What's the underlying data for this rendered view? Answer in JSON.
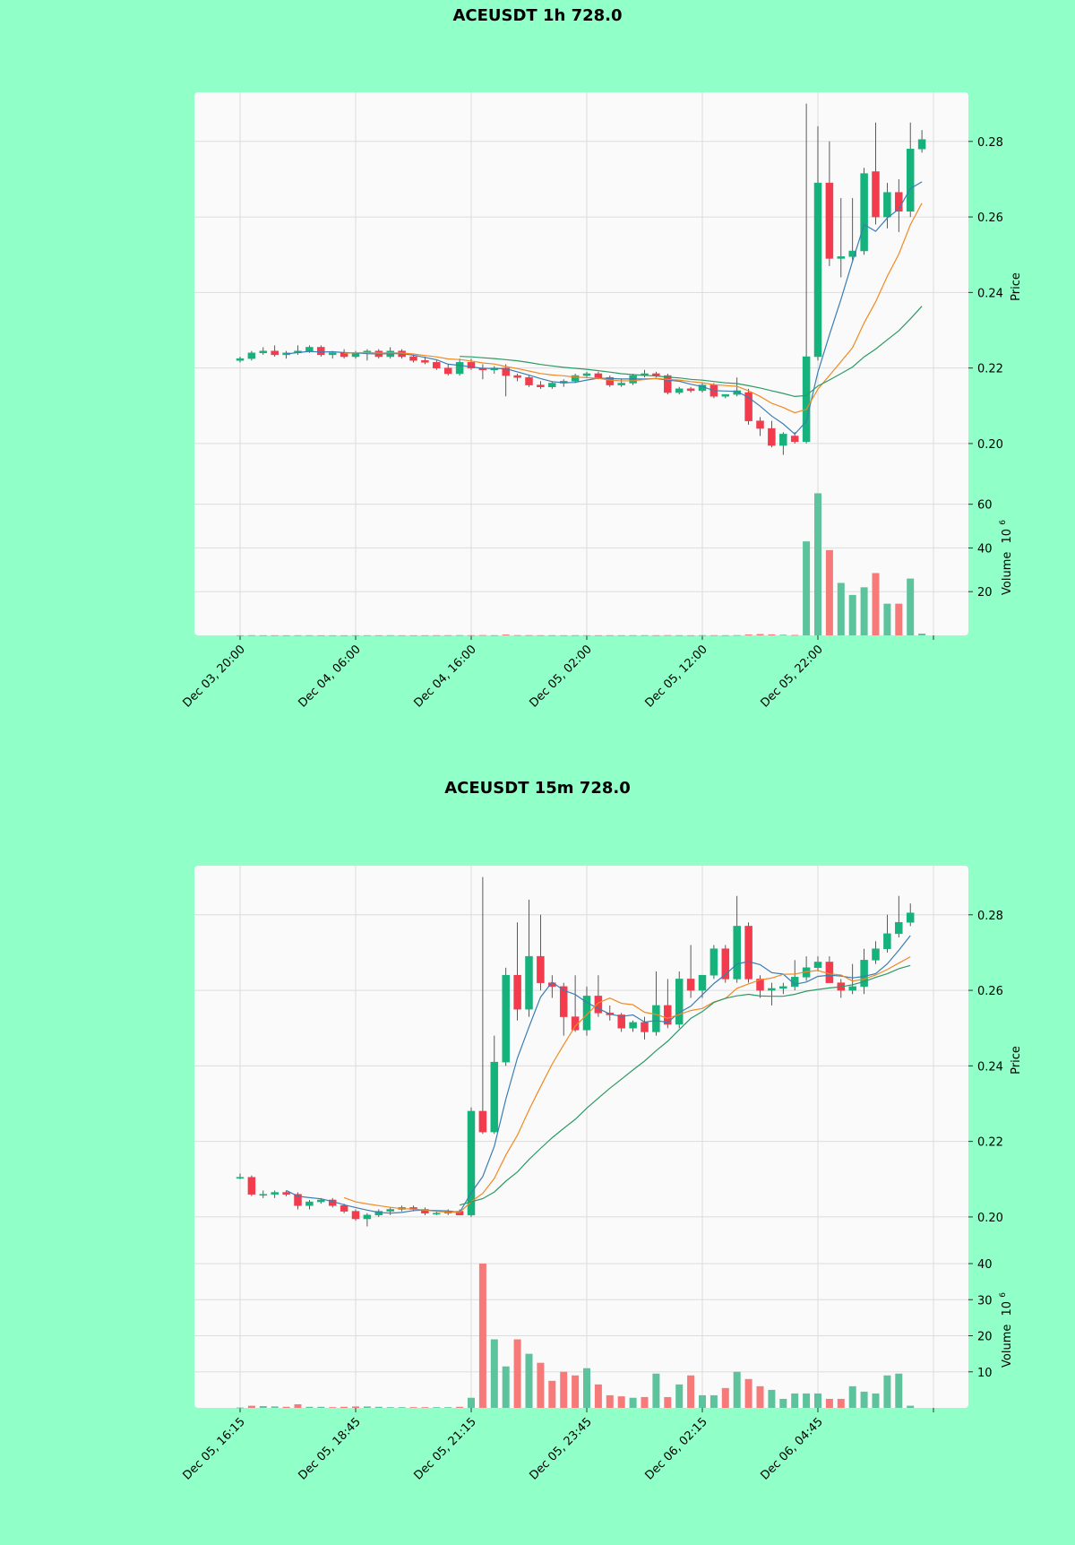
{
  "colors": {
    "background": "#90ffc8",
    "panel": "#fafafa",
    "grid": "#dcdcdc",
    "up": "#16b27c",
    "down": "#f23b4d",
    "vol_up": "#5cc39c",
    "vol_down": "#f77a7a",
    "ma_fast": "#3a7db3",
    "ma_mid": "#f08a24",
    "ma_slow": "#2c9a63"
  },
  "chart_data": [
    {
      "type": "candlestick",
      "title": "ACEUSDT 1h 728.0",
      "ylabel": "Price",
      "volume_label": "Volume",
      "volume_unit": "10",
      "volume_unit_exp": "6",
      "ylim": [
        0.195,
        0.293
      ],
      "yticks": [
        0.2,
        0.22,
        0.24,
        0.26,
        0.28
      ],
      "ytick_labels": [
        "0.20",
        "0.22",
        "0.24",
        "0.26",
        "0.28"
      ],
      "volume_ylim": [
        0,
        66
      ],
      "volume_ticks": [
        20,
        40,
        60
      ],
      "volume_tick_labels": [
        "20",
        "40",
        "60"
      ],
      "xtick_indices": [
        0,
        10,
        20,
        30,
        40,
        50
      ],
      "xtick_labels": [
        "Dec 03, 20:00",
        "Dec 04, 06:00",
        "Dec 04, 16:00",
        "Dec 05, 02:00",
        "Dec 05, 12:00",
        "Dec 05, 22:00"
      ],
      "candles": [
        [
          0.222,
          0.223,
          0.2215,
          0.2225,
          0.05
        ],
        [
          0.2225,
          0.2245,
          0.222,
          0.224,
          0.08
        ],
        [
          0.224,
          0.2255,
          0.2235,
          0.2245,
          0.06
        ],
        [
          0.2245,
          0.226,
          0.223,
          0.2235,
          0.07
        ],
        [
          0.2235,
          0.2245,
          0.2225,
          0.224,
          0.05
        ],
        [
          0.224,
          0.226,
          0.2235,
          0.2245,
          0.06
        ],
        [
          0.2245,
          0.226,
          0.224,
          0.2255,
          0.07
        ],
        [
          0.2255,
          0.226,
          0.223,
          0.2235,
          0.06
        ],
        [
          0.2235,
          0.2245,
          0.2225,
          0.224,
          0.05
        ],
        [
          0.224,
          0.225,
          0.2225,
          0.223,
          0.05
        ],
        [
          0.223,
          0.2245,
          0.2225,
          0.224,
          0.06
        ],
        [
          0.224,
          0.225,
          0.222,
          0.2245,
          0.07
        ],
        [
          0.2245,
          0.225,
          0.2225,
          0.223,
          0.06
        ],
        [
          0.223,
          0.2255,
          0.2225,
          0.2245,
          0.08
        ],
        [
          0.2245,
          0.225,
          0.2225,
          0.223,
          0.06
        ],
        [
          0.223,
          0.2235,
          0.2215,
          0.222,
          0.06
        ],
        [
          0.222,
          0.223,
          0.221,
          0.2215,
          0.07
        ],
        [
          0.2215,
          0.222,
          0.2195,
          0.22,
          0.09
        ],
        [
          0.22,
          0.221,
          0.218,
          0.2185,
          0.1
        ],
        [
          0.2185,
          0.2225,
          0.218,
          0.2215,
          0.12
        ],
        [
          0.2215,
          0.2225,
          0.2195,
          0.22,
          0.1
        ],
        [
          0.22,
          0.221,
          0.217,
          0.2195,
          0.15
        ],
        [
          0.2195,
          0.2205,
          0.2185,
          0.22,
          0.08
        ],
        [
          0.22,
          0.221,
          0.2125,
          0.218,
          0.4
        ],
        [
          0.218,
          0.2185,
          0.2165,
          0.2175,
          0.12
        ],
        [
          0.2175,
          0.218,
          0.215,
          0.2155,
          0.1
        ],
        [
          0.2155,
          0.2165,
          0.2145,
          0.215,
          0.09
        ],
        [
          0.215,
          0.2165,
          0.2145,
          0.216,
          0.08
        ],
        [
          0.216,
          0.217,
          0.215,
          0.2165,
          0.07
        ],
        [
          0.2165,
          0.2185,
          0.216,
          0.218,
          0.09
        ],
        [
          0.218,
          0.219,
          0.2175,
          0.2185,
          0.08
        ],
        [
          0.2185,
          0.219,
          0.217,
          0.2175,
          0.07
        ],
        [
          0.2175,
          0.218,
          0.215,
          0.2155,
          0.08
        ],
        [
          0.2155,
          0.217,
          0.215,
          0.216,
          0.07
        ],
        [
          0.216,
          0.2185,
          0.2155,
          0.218,
          0.09
        ],
        [
          0.218,
          0.2195,
          0.2175,
          0.2185,
          0.1
        ],
        [
          0.2185,
          0.219,
          0.2175,
          0.218,
          0.08
        ],
        [
          0.218,
          0.2185,
          0.213,
          0.2135,
          0.12
        ],
        [
          0.2135,
          0.215,
          0.213,
          0.2145,
          0.08
        ],
        [
          0.2145,
          0.215,
          0.2135,
          0.214,
          0.07
        ],
        [
          0.214,
          0.216,
          0.2135,
          0.2155,
          0.09
        ],
        [
          0.2155,
          0.216,
          0.212,
          0.2125,
          0.1
        ],
        [
          0.2125,
          0.213,
          0.212,
          0.213,
          0.08
        ],
        [
          0.213,
          0.2175,
          0.2125,
          0.214,
          0.12
        ],
        [
          0.2135,
          0.2145,
          0.205,
          0.206,
          0.4
        ],
        [
          0.206,
          0.207,
          0.202,
          0.204,
          0.6
        ],
        [
          0.204,
          0.206,
          0.199,
          0.1995,
          0.45
        ],
        [
          0.1995,
          0.203,
          0.197,
          0.2025,
          0.3
        ],
        [
          0.202,
          0.203,
          0.2,
          0.2005,
          0.2
        ],
        [
          0.2005,
          0.29,
          0.2,
          0.223,
          43.0
        ],
        [
          0.223,
          0.284,
          0.222,
          0.269,
          65.0
        ],
        [
          0.269,
          0.28,
          0.247,
          0.249,
          39.0
        ],
        [
          0.249,
          0.265,
          0.244,
          0.2495,
          24.0
        ],
        [
          0.2495,
          0.265,
          0.248,
          0.251,
          18.5
        ],
        [
          0.251,
          0.273,
          0.25,
          0.2715,
          22.0
        ],
        [
          0.272,
          0.285,
          0.258,
          0.26,
          28.5
        ],
        [
          0.26,
          0.269,
          0.257,
          0.2665,
          14.5
        ],
        [
          0.2665,
          0.27,
          0.256,
          0.2615,
          14.5
        ],
        [
          0.2615,
          0.285,
          0.26,
          0.278,
          26.0
        ],
        [
          0.278,
          0.283,
          0.277,
          0.2805,
          0.8
        ]
      ],
      "ma_windows": [
        5,
        10,
        20
      ]
    },
    {
      "type": "candlestick",
      "title": "ACEUSDT 15m 728.0",
      "ylabel": "Price",
      "volume_label": "Volume",
      "volume_unit": "10",
      "volume_unit_exp": "6",
      "ylim": [
        0.195,
        0.293
      ],
      "yticks": [
        0.2,
        0.22,
        0.24,
        0.26,
        0.28
      ],
      "ytick_labels": [
        "0.20",
        "0.22",
        "0.24",
        "0.26",
        "0.28"
      ],
      "volume_ylim": [
        0,
        40
      ],
      "volume_ticks": [
        10,
        20,
        30,
        40
      ],
      "volume_tick_labels": [
        "10",
        "20",
        "30",
        "40"
      ],
      "xtick_indices": [
        0,
        10,
        20,
        30,
        40,
        50
      ],
      "xtick_labels": [
        "Dec 05, 16:15",
        "Dec 05, 18:45",
        "Dec 05, 21:15",
        "Dec 05, 23:45",
        "Dec 06, 02:15",
        "Dec 06, 04:45"
      ],
      "candles": [
        [
          0.2105,
          0.2115,
          0.21,
          0.2105,
          0.1
        ],
        [
          0.2105,
          0.211,
          0.2055,
          0.206,
          0.6
        ],
        [
          0.206,
          0.207,
          0.205,
          0.206,
          0.5
        ],
        [
          0.206,
          0.207,
          0.205,
          0.2065,
          0.4
        ],
        [
          0.2065,
          0.207,
          0.2055,
          0.206,
          0.3
        ],
        [
          0.206,
          0.2065,
          0.202,
          0.203,
          1.0
        ],
        [
          0.203,
          0.2045,
          0.202,
          0.204,
          0.3
        ],
        [
          0.204,
          0.205,
          0.2035,
          0.2045,
          0.3
        ],
        [
          0.2045,
          0.205,
          0.2025,
          0.203,
          0.2
        ],
        [
          0.203,
          0.2035,
          0.201,
          0.2015,
          0.3
        ],
        [
          0.2015,
          0.202,
          0.199,
          0.1995,
          0.4
        ],
        [
          0.1995,
          0.201,
          0.1975,
          0.2005,
          0.4
        ],
        [
          0.2005,
          0.202,
          0.2,
          0.2015,
          0.3
        ],
        [
          0.2015,
          0.2025,
          0.2005,
          0.202,
          0.2
        ],
        [
          0.202,
          0.203,
          0.2015,
          0.2025,
          0.2
        ],
        [
          0.2025,
          0.203,
          0.2015,
          0.202,
          0.2
        ],
        [
          0.202,
          0.2025,
          0.2005,
          0.201,
          0.2
        ],
        [
          0.201,
          0.2015,
          0.2005,
          0.201,
          0.2
        ],
        [
          0.201,
          0.202,
          0.2005,
          0.2015,
          0.2
        ],
        [
          0.2015,
          0.202,
          0.2005,
          0.2005,
          0.3
        ],
        [
          0.2005,
          0.229,
          0.2,
          0.228,
          2.8
        ],
        [
          0.228,
          0.29,
          0.222,
          0.2225,
          40.0
        ],
        [
          0.2225,
          0.248,
          0.222,
          0.241,
          19.0
        ],
        [
          0.241,
          0.266,
          0.24,
          0.264,
          11.5
        ],
        [
          0.264,
          0.278,
          0.252,
          0.255,
          19.0
        ],
        [
          0.255,
          0.284,
          0.253,
          0.269,
          15.0
        ],
        [
          0.269,
          0.28,
          0.26,
          0.262,
          12.5
        ],
        [
          0.262,
          0.264,
          0.258,
          0.261,
          7.5
        ],
        [
          0.261,
          0.262,
          0.248,
          0.253,
          10.0
        ],
        [
          0.253,
          0.264,
          0.249,
          0.2495,
          9.0
        ],
        [
          0.2495,
          0.261,
          0.248,
          0.2585,
          11.0
        ],
        [
          0.2585,
          0.264,
          0.253,
          0.254,
          6.5
        ],
        [
          0.254,
          0.256,
          0.252,
          0.2535,
          3.5
        ],
        [
          0.2535,
          0.254,
          0.249,
          0.25,
          3.2
        ],
        [
          0.25,
          0.252,
          0.249,
          0.2515,
          2.8
        ],
        [
          0.2515,
          0.253,
          0.247,
          0.249,
          3.0
        ],
        [
          0.249,
          0.265,
          0.248,
          0.256,
          9.5
        ],
        [
          0.256,
          0.263,
          0.25,
          0.251,
          3.0
        ],
        [
          0.251,
          0.265,
          0.25,
          0.263,
          6.5
        ],
        [
          0.263,
          0.272,
          0.258,
          0.26,
          9.0
        ],
        [
          0.26,
          0.264,
          0.258,
          0.264,
          3.5
        ],
        [
          0.264,
          0.272,
          0.263,
          0.271,
          3.5
        ],
        [
          0.271,
          0.272,
          0.262,
          0.263,
          5.5
        ],
        [
          0.263,
          0.285,
          0.262,
          0.277,
          10.0
        ],
        [
          0.277,
          0.278,
          0.262,
          0.263,
          8.0
        ],
        [
          0.263,
          0.264,
          0.258,
          0.26,
          6.0
        ],
        [
          0.26,
          0.262,
          0.256,
          0.2605,
          5.0
        ],
        [
          0.2605,
          0.262,
          0.259,
          0.261,
          2.5
        ],
        [
          0.261,
          0.268,
          0.26,
          0.2635,
          4.0
        ],
        [
          0.2635,
          0.269,
          0.2625,
          0.266,
          4.0
        ],
        [
          0.266,
          0.269,
          0.265,
          0.2675,
          4.0
        ],
        [
          0.2675,
          0.269,
          0.262,
          0.262,
          2.5
        ],
        [
          0.262,
          0.263,
          0.258,
          0.26,
          2.5
        ],
        [
          0.26,
          0.267,
          0.259,
          0.261,
          6.0
        ],
        [
          0.261,
          0.271,
          0.259,
          0.268,
          4.5
        ],
        [
          0.268,
          0.273,
          0.267,
          0.271,
          4.0
        ],
        [
          0.271,
          0.28,
          0.27,
          0.275,
          9.0
        ],
        [
          0.275,
          0.285,
          0.274,
          0.278,
          9.5
        ],
        [
          0.278,
          0.283,
          0.277,
          0.2805,
          0.6
        ]
      ],
      "ma_windows": [
        5,
        10,
        20
      ]
    }
  ]
}
